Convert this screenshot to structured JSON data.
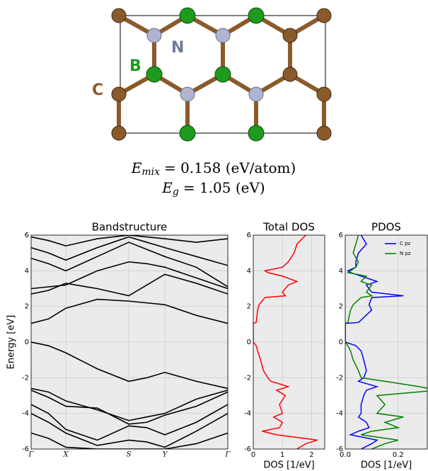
{
  "structure": {
    "labels": [
      "N",
      "B",
      "C"
    ]
  },
  "formulas": [
    {
      "symbol": "E",
      "subscript": "mix",
      "text": "= 0.158 (eV/atom)"
    },
    {
      "symbol": "E",
      "subscript": "g",
      "text": "= 1.05 (eV)"
    }
  ],
  "chart_data": [
    {
      "type": "line",
      "title": "Bandstructure",
      "y_label": "Energy [eV]",
      "color": "#000000",
      "grid": true,
      "x": [
        0,
        0.245,
        0.49,
        0.935,
        1.38,
        1.635,
        1.89,
        2.335,
        2.78
      ],
      "xlim": [
        0,
        2.78
      ],
      "xticks": [
        {
          "value": 0,
          "label": "Γ"
        },
        {
          "value": 0.49,
          "label": "X"
        },
        {
          "value": 1.38,
          "label": "S"
        },
        {
          "value": 1.89,
          "label": "Y"
        },
        {
          "value": 2.78,
          "label": "Γ"
        }
      ],
      "ylim": [
        -6,
        6
      ],
      "yticks": [
        -6,
        -4,
        -2,
        0,
        2,
        4,
        6
      ],
      "series": [
        {
          "values": [
            0,
            -0.2,
            -0.6,
            -1.5,
            -2.2,
            -2.0,
            -1.7,
            -2.2,
            -2.6
          ]
        },
        {
          "values": [
            -2.6,
            -2.8,
            -3.3,
            -3.8,
            -4.4,
            -4.2,
            -4,
            -3.2,
            -2.7
          ]
        },
        {
          "values": [
            -2.7,
            -3.1,
            -3.6,
            -3.7,
            -4.6,
            -4.5,
            -4.1,
            -3.6,
            -2.8
          ]
        },
        {
          "values": [
            -3.5,
            -4.0,
            -4.9,
            -5.5,
            -4.7,
            -4.8,
            -5.2,
            -4.5,
            -3.5
          ]
        },
        {
          "values": [
            -4.0,
            -4.5,
            -5.1,
            -5.8,
            -5.5,
            -5.6,
            -5.9,
            -5.0,
            -4.0
          ]
        },
        {
          "values": [
            -5.1,
            -5.4,
            -5.9,
            -6,
            -6,
            -6,
            -6,
            -5.7,
            -5.1
          ]
        },
        {
          "values": [
            1.05,
            1.3,
            1.9,
            2.4,
            2.3,
            2.2,
            2.1,
            1.5,
            1.05
          ]
        },
        {
          "values": [
            2.7,
            2.9,
            3.3,
            3.0,
            2.6,
            3.2,
            3.8,
            3.3,
            2.7
          ]
        },
        {
          "values": [
            3.0,
            3.1,
            3.2,
            4.0,
            4.5,
            4.4,
            4.2,
            3.6,
            3.0
          ]
        },
        {
          "values": [
            4.7,
            4.4,
            4.0,
            4.8,
            5.6,
            5.2,
            4.8,
            4.2,
            3.1
          ]
        },
        {
          "values": [
            5.3,
            5.0,
            4.6,
            5.3,
            5.9,
            5.6,
            5.3,
            4.8,
            4.3
          ]
        },
        {
          "values": [
            5.9,
            5.7,
            5.4,
            5.8,
            6,
            5.9,
            5.8,
            5.6,
            5.8
          ]
        }
      ]
    },
    {
      "type": "dos",
      "title": "Total DOS",
      "x_label": "DOS [1/eV]",
      "grid": true,
      "energy": [
        -6,
        -5.7,
        -5.5,
        -5.2,
        -5,
        -4.8,
        -4.5,
        -4.2,
        -4,
        -3.5,
        -3,
        -2.7,
        -2.5,
        -2.2,
        -2,
        -1.6,
        -1,
        -0.5,
        -0.2,
        0,
        1.05,
        1.1,
        1.8,
        2.1,
        2.5,
        2.6,
        2.8,
        3.2,
        3.4,
        3.7,
        3.9,
        4.0,
        4.2,
        4.5,
        5,
        5.5,
        6
      ],
      "xlim": [
        0,
        2.45
      ],
      "xticks": [
        0,
        1,
        2
      ],
      "ylim": [
        -6,
        6
      ],
      "yticks": [
        -6,
        -4,
        -2,
        0,
        2,
        4,
        6
      ],
      "series": [
        {
          "color": "#ff0000",
          "values": [
            1.5,
            1.8,
            2.2,
            0.8,
            0.3,
            0.9,
            1.0,
            0.7,
            1.0,
            0.9,
            1.1,
            0.8,
            1.2,
            0.6,
            0.5,
            0.35,
            0.25,
            0.15,
            0.1,
            0,
            0,
            0.1,
            0.15,
            0.2,
            0.4,
            1.1,
            1.0,
            1.2,
            1.5,
            1.0,
            0.5,
            0.4,
            1.0,
            1.2,
            1.4,
            1.5,
            1.8
          ]
        }
      ]
    },
    {
      "type": "dos",
      "title": "PDOS",
      "x_label": "DOS [1/eV]",
      "grid": true,
      "legend": "upper right",
      "energy": [
        -6,
        -5.7,
        -5.5,
        -5.2,
        -5,
        -4.8,
        -4.5,
        -4.2,
        -4,
        -3.5,
        -3,
        -2.7,
        -2.5,
        -2.2,
        -2,
        -1.6,
        -1,
        -0.5,
        -0.2,
        0,
        1.05,
        1.1,
        1.8,
        2.1,
        2.5,
        2.6,
        2.8,
        3.2,
        3.4,
        3.7,
        3.9,
        4.0,
        4.2,
        4.5,
        5,
        5.5,
        6
      ],
      "xlim": [
        0,
        0.31
      ],
      "xticks": [
        {
          "value": 0,
          "label": "0.0"
        },
        0.2
      ],
      "ylim": [
        -6,
        6
      ],
      "yticks": [
        -6,
        -4,
        -2,
        0,
        2,
        4,
        6
      ],
      "series": [
        {
          "name": "C pz",
          "color": "#0000ff",
          "values": [
            0.06,
            0.1,
            0.12,
            0.02,
            0.05,
            0.09,
            0.08,
            0.05,
            0.06,
            0.06,
            0.07,
            0.08,
            0.12,
            0.05,
            0.07,
            0.08,
            0.07,
            0.06,
            0.04,
            0,
            0,
            0.05,
            0.1,
            0.09,
            0.1,
            0.22,
            0.1,
            0.08,
            0.12,
            0.06,
            0.02,
            0.01,
            0.04,
            0.04,
            0.05,
            0.08,
            0.06
          ]
        },
        {
          "name": "N pz",
          "color": "#008000",
          "values": [
            0.1,
            0.15,
            0.2,
            0.06,
            0.1,
            0.2,
            0.15,
            0.22,
            0.12,
            0.15,
            0.12,
            0.35,
            0.28,
            0.15,
            0.06,
            0.05,
            0.03,
            0.02,
            0.01,
            0,
            0,
            0.01,
            0.02,
            0.03,
            0.06,
            0.1,
            0.08,
            0.1,
            0.06,
            0.08,
            0.01,
            0.02,
            0.04,
            0.05,
            0.03,
            0.04,
            0.05
          ]
        }
      ]
    }
  ]
}
